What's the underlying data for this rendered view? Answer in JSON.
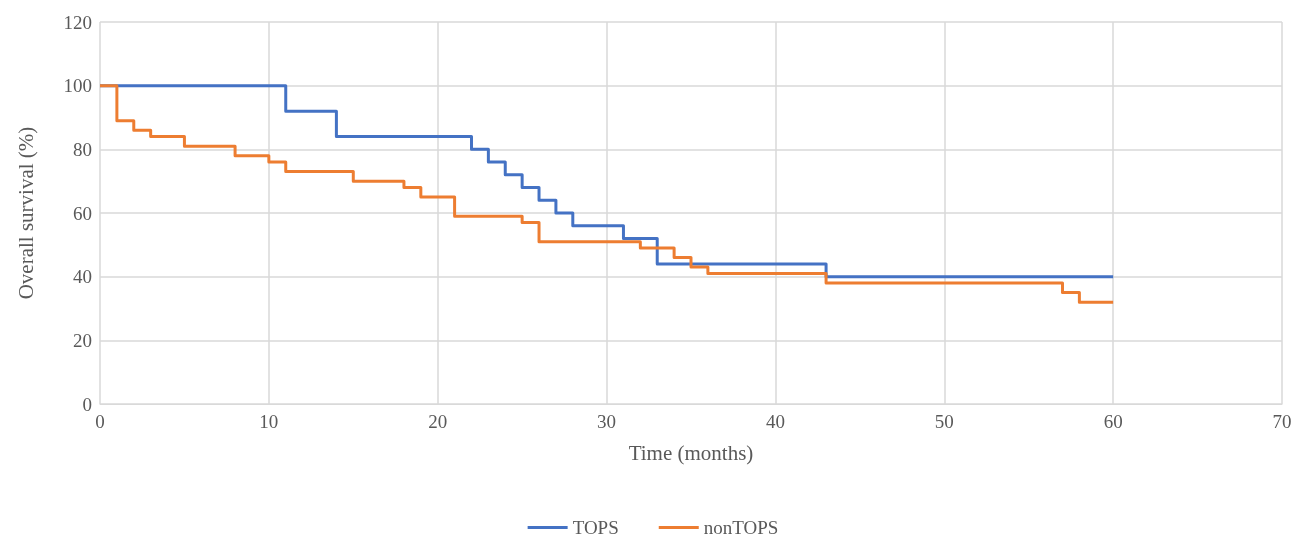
{
  "chart_data": {
    "type": "step",
    "xlabel": "Time (months)",
    "ylabel": "Overall survival (%)",
    "xlim": [
      0,
      70
    ],
    "xticks": [
      0,
      10,
      20,
      30,
      40,
      50,
      60,
      70
    ],
    "ylim": [
      0,
      120
    ],
    "yticks": [
      0,
      20,
      40,
      60,
      80,
      100,
      120
    ],
    "grid": true,
    "legend": "bottom",
    "marker": "none",
    "line_style": "solid",
    "series": [
      {
        "name": "TOPS",
        "color": "#4472c4",
        "x": [
          0,
          11,
          14,
          22,
          23,
          24,
          25,
          26,
          27,
          28,
          31,
          33,
          43,
          60
        ],
        "values": [
          100,
          92,
          84,
          80,
          76,
          72,
          68,
          64,
          60,
          56,
          52,
          44,
          40,
          40
        ]
      },
      {
        "name": "nonTOPS",
        "color": "#ed7d31",
        "x": [
          0,
          1,
          2,
          3,
          5,
          8,
          10,
          11,
          15,
          18,
          19,
          21,
          25,
          26,
          32,
          34,
          35,
          36,
          43,
          57,
          58,
          60
        ],
        "values": [
          100,
          89,
          86,
          84,
          81,
          78,
          76,
          73,
          70,
          68,
          65,
          59,
          57,
          51,
          49,
          46,
          43,
          41,
          38,
          35,
          32,
          32
        ]
      }
    ]
  }
}
